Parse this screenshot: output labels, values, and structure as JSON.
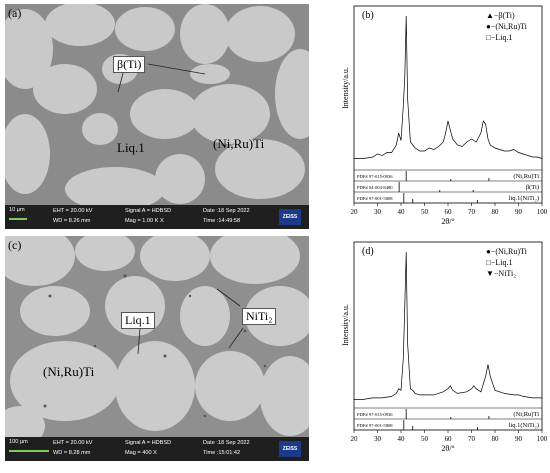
{
  "panels": {
    "a": {
      "letter": "(a)",
      "labels": [
        "β(Ti)",
        "Liq.1",
        "(Ni,Ru)Ti"
      ],
      "info": {
        "scale": "10 µm",
        "eht": "EHT = 20.00 kV",
        "wd": "WD = 8.26 mm",
        "signal": "Signal A = HDBSD",
        "mag": "Mag =    1.00 K X",
        "date": "Date :18 Sep 2022",
        "time": "Time :14:49:58",
        "logo": "ZEISS"
      }
    },
    "c": {
      "letter": "(c)",
      "labels": [
        "Liq.1",
        "NiTi₂",
        "(Ni,Ru)Ti"
      ],
      "info": {
        "scale": "100 µm",
        "eht": "EHT = 20.00 kV",
        "wd": "WD = 8.28 mm",
        "signal": "Signal A = HDBSD",
        "mag": "Mag =   400 X",
        "date": "Date :18 Sep 2022",
        "time": "Time :15:01:42",
        "logo": "ZEISS"
      }
    }
  },
  "chart_data": [
    {
      "type": "line",
      "panel": "(b)",
      "xlabel": "2θ/°",
      "ylabel": "Intensity/a.u.",
      "xlim": [
        20,
        100
      ],
      "xticks": [
        20,
        30,
        40,
        50,
        60,
        70,
        80,
        90,
        100
      ],
      "legend": [
        "▲−β(Ti)",
        "●−(Ni,Ru)Ti",
        "□−Liq.1"
      ],
      "legend_position": "top-right",
      "pdf_rows": [
        {
          "pdf": "PDF# 97-015-0936",
          "phase": "(Ni,Ru)Ti",
          "sticks": [
            {
              "x": 42.2,
              "h": 1
            },
            {
              "x": 61.2,
              "h": 0.2
            },
            {
              "x": 77.4,
              "h": 0.3
            }
          ]
        },
        {
          "pdf": "PDF# 04-004-8480",
          "phase": "β(Ti)",
          "sticks": [
            {
              "x": 39.2,
              "h": 1
            },
            {
              "x": 56.5,
              "h": 0.2
            },
            {
              "x": 70.7,
              "h": 0.2
            }
          ]
        },
        {
          "pdf": "PDF# 97-001-5808",
          "phase": "liq.1(NiTi₂)",
          "sticks": [
            {
              "x": 41.2,
              "h": 1
            },
            {
              "x": 45.0,
              "h": 0.4
            },
            {
              "x": 72.5,
              "h": 0.3
            }
          ]
        }
      ],
      "series": [
        {
          "x": [
            20,
            24,
            28,
            30,
            32,
            34,
            36,
            38,
            39,
            40,
            41,
            41.6,
            42.2,
            42.8,
            44,
            45,
            46,
            48,
            50,
            52,
            54,
            56,
            58,
            59,
            60,
            61,
            62,
            64,
            66,
            68,
            70,
            71,
            72,
            74,
            75,
            76,
            77,
            78,
            80,
            82,
            84,
            86,
            88,
            90,
            92,
            94,
            96,
            98,
            100
          ],
          "y": [
            5,
            5,
            6,
            8,
            7,
            9,
            9,
            14,
            22,
            17,
            40,
            60,
            100,
            45,
            16,
            14,
            12,
            10,
            10,
            12,
            11,
            13,
            16,
            22,
            30,
            24,
            18,
            14,
            13,
            16,
            18,
            17,
            16,
            22,
            30,
            28,
            18,
            14,
            12,
            11,
            10,
            10,
            11,
            9,
            8,
            7,
            6,
            6,
            5
          ]
        }
      ]
    },
    {
      "type": "line",
      "panel": "(d)",
      "xlabel": "2θ/°",
      "ylabel": "Intensity/a.u.",
      "xlim": [
        20,
        100
      ],
      "xticks": [
        20,
        30,
        40,
        50,
        60,
        70,
        80,
        90,
        100
      ],
      "legend": [
        "●−(Ni,Ru)Ti",
        "□−Liq.1",
        "▼−NiTi₂"
      ],
      "legend_position": "top-right",
      "pdf_rows": [
        {
          "pdf": "PDF# 97-015-0936",
          "phase": "(Ni,Ru)Ti",
          "sticks": [
            {
              "x": 42.2,
              "h": 1
            },
            {
              "x": 61.2,
              "h": 0.2
            },
            {
              "x": 77.4,
              "h": 0.3
            }
          ]
        },
        {
          "pdf": "PDF# 97-001-5808",
          "phase": "liq.1(NiTi₂)",
          "sticks": [
            {
              "x": 41.2,
              "h": 1
            },
            {
              "x": 45.0,
              "h": 0.4
            },
            {
              "x": 72.5,
              "h": 0.3
            }
          ]
        }
      ],
      "series": [
        {
          "x": [
            20,
            24,
            28,
            32,
            36,
            38,
            39,
            40,
            41,
            41.6,
            42.2,
            42.8,
            44,
            45,
            46,
            48,
            50,
            54,
            58,
            60,
            61,
            62,
            64,
            68,
            70,
            71,
            72,
            74,
            76,
            77,
            78,
            80,
            84,
            88,
            90,
            92,
            96,
            100
          ],
          "y": [
            3,
            3,
            4,
            4,
            5,
            7,
            10,
            9,
            30,
            65,
            100,
            40,
            10,
            9,
            7,
            6,
            6,
            6,
            8,
            10,
            12,
            9,
            7,
            8,
            10,
            12,
            10,
            8,
            18,
            26,
            18,
            9,
            7,
            6,
            6,
            5,
            4,
            4
          ]
        }
      ]
    }
  ]
}
